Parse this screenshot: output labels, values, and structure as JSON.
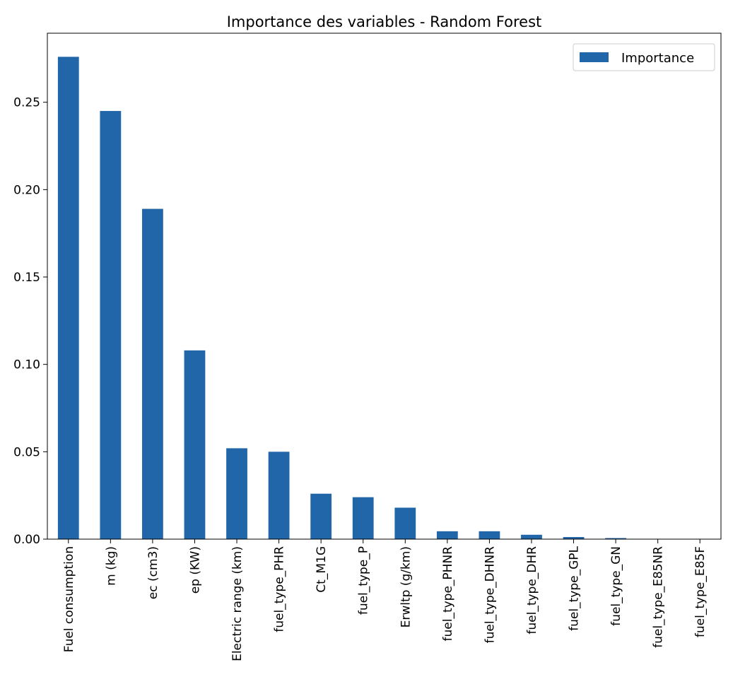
{
  "chart_data": {
    "type": "bar",
    "title": "Importance des variables - Random Forest",
    "xlabel": "",
    "ylabel": "",
    "categories": [
      "Fuel consumption",
      "m (kg)",
      "ec (cm3)",
      "ep (KW)",
      "Electric range (km)",
      "fuel_type_PHR",
      "Ct_M1G",
      "fuel_type_P",
      "Erwltp (g/km)",
      "fuel_type_PHNR",
      "fuel_type_DHNR",
      "fuel_type_DHR",
      "fuel_type_GPL",
      "fuel_type_GN",
      "fuel_type_E85NR",
      "fuel_type_E85F"
    ],
    "series": [
      {
        "name": "Importance",
        "color": "#2166a8",
        "values": [
          0.276,
          0.245,
          0.189,
          0.108,
          0.052,
          0.05,
          0.026,
          0.024,
          0.018,
          0.0045,
          0.0045,
          0.0025,
          0.0012,
          0.0006,
          0.0001,
          0.0001
        ]
      }
    ],
    "ylim": [
      0,
      0.2895
    ],
    "yticks": [
      0.0,
      0.05,
      0.1,
      0.15,
      0.2,
      0.25
    ],
    "ytick_labels": [
      "0.00",
      "0.05",
      "0.10",
      "0.15",
      "0.20",
      "0.25"
    ],
    "grid": false,
    "legend": {
      "position": "top-right",
      "entries": [
        "Importance"
      ]
    }
  }
}
